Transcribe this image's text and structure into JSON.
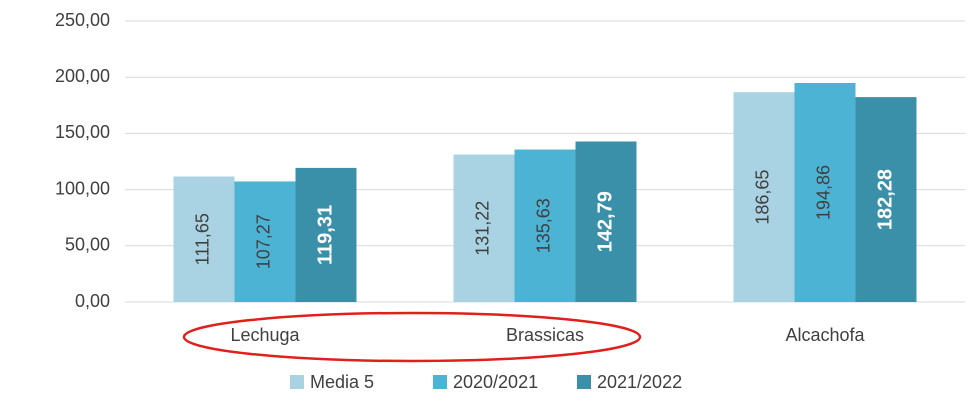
{
  "chart_data": {
    "type": "bar",
    "categories": [
      "Lechuga",
      "Brassicas",
      "Alcachofa"
    ],
    "series": [
      {
        "name": "Media 5",
        "color": "#a9d3e3",
        "values": [
          111.65,
          131.22,
          186.65
        ],
        "value_labels": [
          "111,65",
          "131,22",
          "186,65"
        ]
      },
      {
        "name": "2020/2021",
        "color": "#4db3d4",
        "values": [
          107.27,
          135.63,
          194.86
        ],
        "value_labels": [
          "107,27",
          "135,63",
          "194,86"
        ]
      },
      {
        "name": "2021/2022",
        "color": "#3a90a8",
        "values": [
          119.31,
          142.79,
          182.28
        ],
        "value_labels": [
          "119,31",
          "142,79",
          "182,28"
        ]
      }
    ],
    "ylim": [
      0,
      250
    ],
    "yticks": [
      {
        "value": 0,
        "label": "0,00"
      },
      {
        "value": 50,
        "label": "50,00"
      },
      {
        "value": 100,
        "label": "100,00"
      },
      {
        "value": 150,
        "label": "150,00"
      },
      {
        "value": 200,
        "label": "200,00"
      },
      {
        "value": 250,
        "label": "250,00"
      }
    ],
    "grid": true,
    "legend": "bottom"
  }
}
